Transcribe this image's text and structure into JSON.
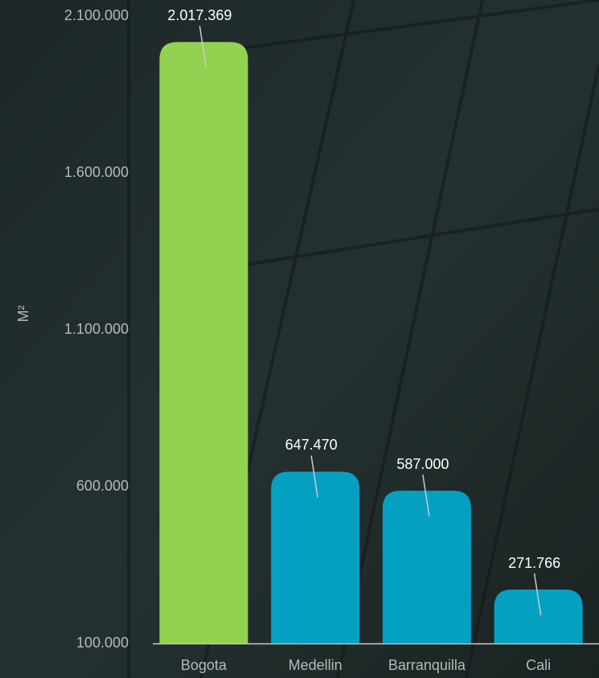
{
  "chart_data": {
    "type": "bar",
    "categories": [
      "Bogota",
      "Medellin",
      "Barranquilla",
      "Cali"
    ],
    "values": [
      2017369,
      647470,
      587000,
      271766
    ],
    "value_labels": [
      "2.017.369",
      "647.470",
      "587.000",
      "271.766"
    ],
    "colors": [
      "#93d150",
      "#04a0c2",
      "#04a0c2",
      "#04a0c2"
    ],
    "ylabel": "M²",
    "ylim": [
      100000,
      2100000
    ],
    "yticks": [
      {
        "value": 100000,
        "label": "100.000"
      },
      {
        "value": 600000,
        "label": "600.000"
      },
      {
        "value": 1100000,
        "label": "1.100.000"
      },
      {
        "value": 1600000,
        "label": "1.600.000"
      },
      {
        "value": 2100000,
        "label": "2.100.000"
      }
    ]
  }
}
